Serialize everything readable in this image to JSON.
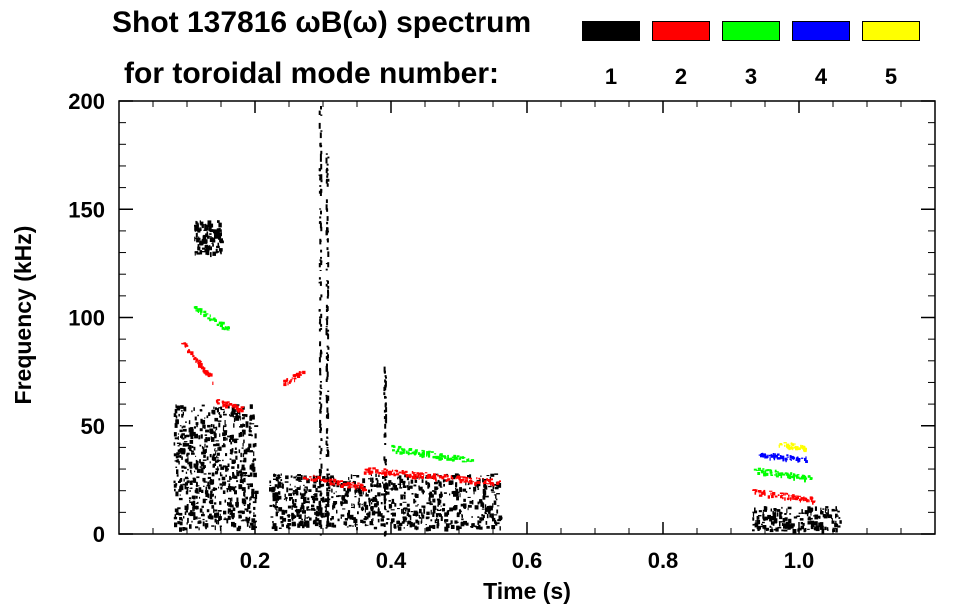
{
  "chart_data": {
    "type": "heatmap",
    "title_line1": "Shot 137816 ωB(ω) spectrum",
    "title_line2": "for toroidal mode number:",
    "xlabel": "Time (s)",
    "ylabel": "Frequency (kHz)",
    "xlim": [
      0.0,
      1.2
    ],
    "ylim": [
      0,
      200
    ],
    "xticks": [
      0.2,
      0.4,
      0.6,
      0.8,
      1.0
    ],
    "xtick_labels": [
      "0.2",
      "0.4",
      "0.6",
      "0.8",
      "1.0"
    ],
    "yticks": [
      0,
      50,
      100,
      150,
      200
    ],
    "ytick_labels": [
      "0",
      "50",
      "100",
      "150",
      "200"
    ],
    "grid": false,
    "legend_placement": "top-right",
    "series": [
      {
        "name": "1",
        "color": "#000000",
        "regions": [
          {
            "t": [
              0.08,
              0.2
            ],
            "f": [
              3,
              60
            ]
          },
          {
            "t": [
              0.11,
              0.15
            ],
            "f": [
              130,
              145
            ]
          },
          {
            "t": [
              0.22,
              0.56
            ],
            "f": [
              3,
              28
            ]
          },
          {
            "t": [
              0.93,
              1.06
            ],
            "f": [
              2,
              13
            ]
          }
        ],
        "lines": [
          {
            "t": 0.295,
            "f": [
              0,
              200
            ]
          },
          {
            "t": 0.305,
            "f": [
              0,
              180
            ]
          },
          {
            "t": 0.39,
            "f": [
              0,
              80
            ]
          }
        ]
      },
      {
        "name": "2",
        "color": "#ff0000",
        "tracks": [
          {
            "t": [
              0.09,
              0.14
            ],
            "f": [
              90,
              70
            ]
          },
          {
            "t": [
              0.14,
              0.18
            ],
            "f": [
              62,
              58
            ]
          },
          {
            "t": [
              0.24,
              0.27
            ],
            "f": [
              70,
              75
            ]
          },
          {
            "t": [
              0.27,
              0.36
            ],
            "f": [
              27,
              22
            ]
          },
          {
            "t": [
              0.36,
              0.56
            ],
            "f": [
              30,
              24
            ]
          },
          {
            "t": [
              0.93,
              1.02
            ],
            "f": [
              20,
              16
            ]
          }
        ]
      },
      {
        "name": "3",
        "color": "#00ff00",
        "tracks": [
          {
            "t": [
              0.11,
              0.16
            ],
            "f": [
              105,
              95
            ]
          },
          {
            "t": [
              0.4,
              0.52
            ],
            "f": [
              40,
              34
            ]
          },
          {
            "t": [
              0.93,
              1.02
            ],
            "f": [
              30,
              26
            ]
          }
        ]
      },
      {
        "name": "4",
        "color": "#0000ff",
        "tracks": [
          {
            "t": [
              0.94,
              1.01
            ],
            "f": [
              37,
              35
            ]
          }
        ]
      },
      {
        "name": "5",
        "color": "#ffff00",
        "tracks": [
          {
            "t": [
              0.97,
              1.01
            ],
            "f": [
              42,
              40
            ]
          }
        ]
      }
    ]
  }
}
